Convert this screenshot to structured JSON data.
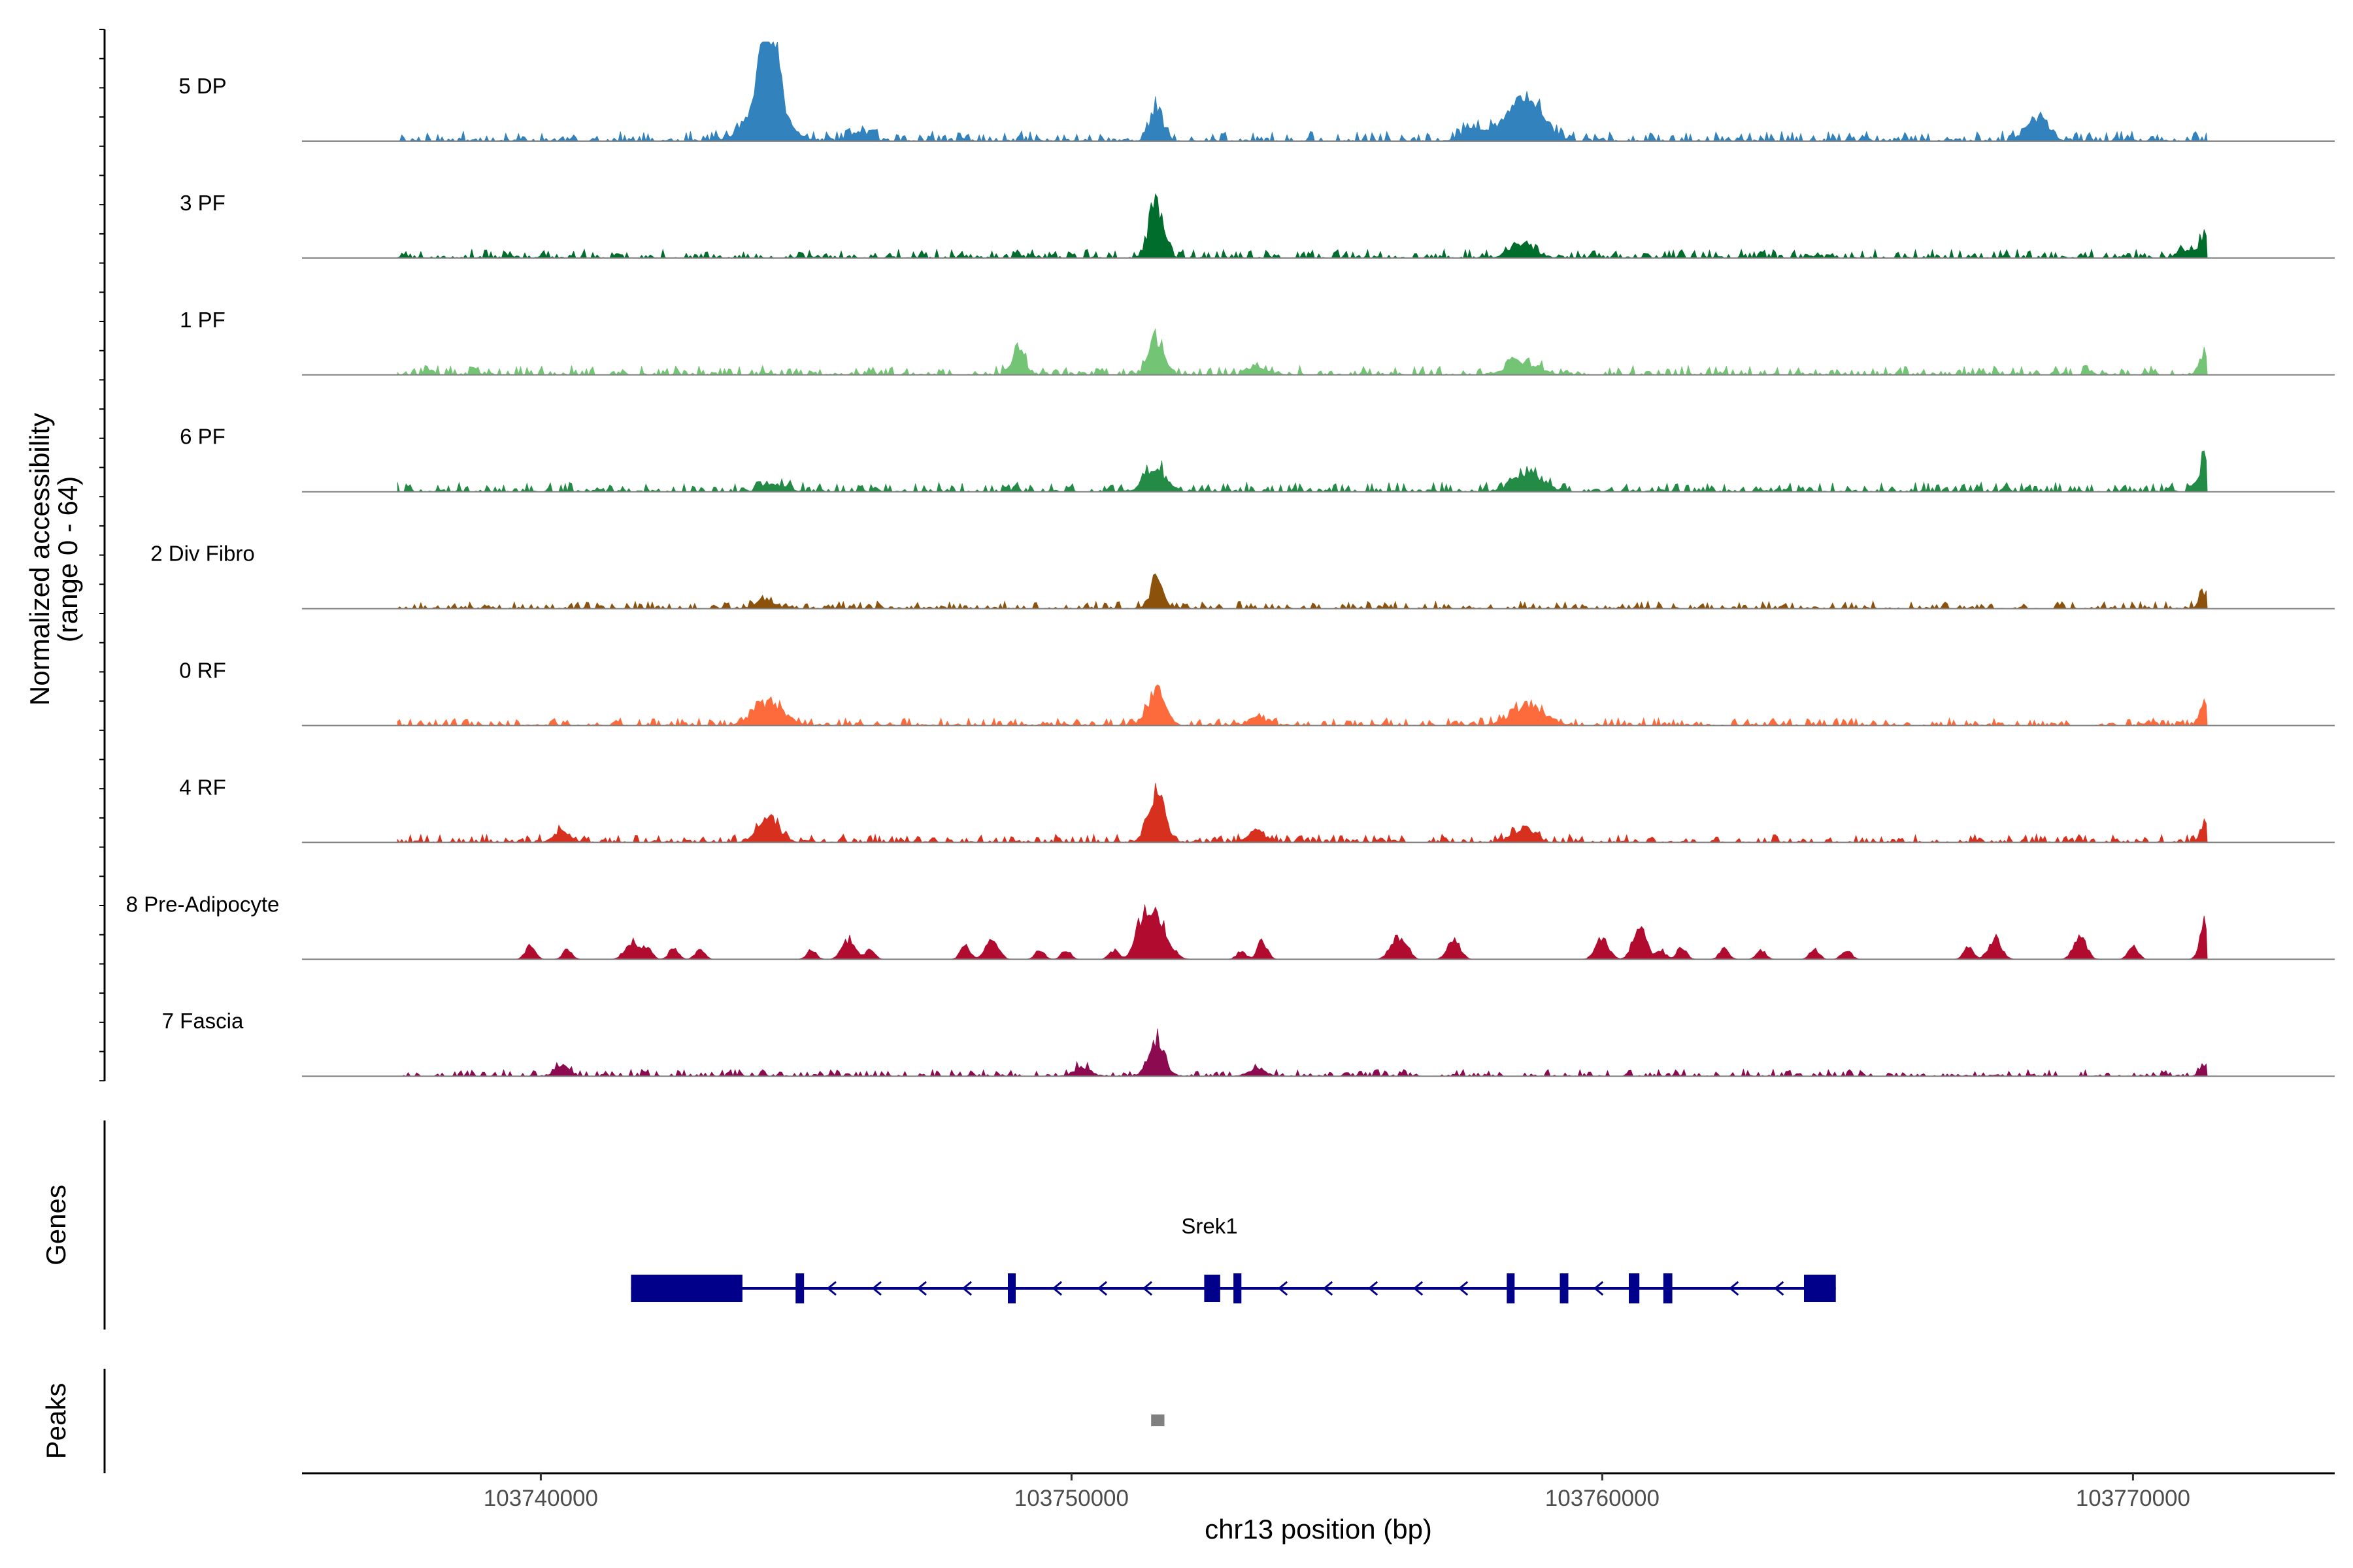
{
  "chart_data": {
    "type": "area",
    "title": "",
    "ylabel": "Normalized accessibility",
    "ylabel_range": "(range 0 - 64)",
    "xlabel": "chr13 position (bp)",
    "ylim": [
      0,
      64
    ],
    "xlim": [
      103735500,
      103773800
    ],
    "x_ticks": [
      103740000,
      103750000,
      103760000,
      103770000
    ],
    "x_tick_labels": [
      "103740000",
      "103750000",
      "103760000",
      "103770000"
    ],
    "signal_start": 103737300,
    "signal_end": 103771400,
    "tracks": [
      {
        "name": "5 DP",
        "color": "#3182bd",
        "noise": 3.0,
        "density": 0.9,
        "seed": 11,
        "peaks": [
          [
            103744300,
            60,
            160
          ],
          [
            103744250,
            22,
            350
          ],
          [
            103751600,
            20,
            120
          ],
          [
            103758600,
            20,
            260
          ],
          [
            103758300,
            10,
            450
          ],
          [
            103768200,
            14,
            200
          ],
          [
            103757500,
            6,
            150
          ],
          [
            103746000,
            5,
            200
          ]
        ]
      },
      {
        "name": "3 PF",
        "color": "#006d2c",
        "noise": 2.6,
        "density": 0.85,
        "seed": 23,
        "peaks": [
          [
            103751600,
            36,
            130
          ],
          [
            103758500,
            9,
            220
          ],
          [
            103771350,
            14,
            90
          ],
          [
            103771000,
            5,
            150
          ]
        ]
      },
      {
        "name": "1 PF",
        "color": "#74c476",
        "noise": 2.8,
        "density": 0.9,
        "seed": 37,
        "peaks": [
          [
            103749000,
            17,
            120
          ],
          [
            103751600,
            24,
            140
          ],
          [
            103758500,
            8,
            280
          ],
          [
            103753500,
            5,
            150
          ],
          [
            103771350,
            14,
            90
          ]
        ]
      },
      {
        "name": "6 PF",
        "color": "#238b45",
        "noise": 2.8,
        "density": 0.9,
        "seed": 41,
        "peaks": [
          [
            103751600,
            14,
            200
          ],
          [
            103758600,
            11,
            280
          ],
          [
            103771350,
            22,
            80
          ],
          [
            103744400,
            5,
            200
          ]
        ]
      },
      {
        "name": "2 Div Fibro",
        "color": "#8c510a",
        "noise": 2.2,
        "density": 0.8,
        "seed": 53,
        "peaks": [
          [
            103751600,
            17,
            120
          ],
          [
            103744200,
            6,
            150
          ],
          [
            103771350,
            11,
            90
          ]
        ]
      },
      {
        "name": "0 RF",
        "color": "#fd6a3b",
        "noise": 2.2,
        "density": 0.9,
        "seed": 61,
        "peaks": [
          [
            103744300,
            15,
            270
          ],
          [
            103751600,
            22,
            160
          ],
          [
            103758600,
            13,
            300
          ],
          [
            103771350,
            15,
            90
          ],
          [
            103753500,
            5,
            150
          ]
        ]
      },
      {
        "name": "4 RF",
        "color": "#d7301f",
        "noise": 2.4,
        "density": 0.9,
        "seed": 71,
        "peaks": [
          [
            103751600,
            30,
            160
          ],
          [
            103744300,
            14,
            200
          ],
          [
            103740400,
            7,
            150
          ],
          [
            103753500,
            7,
            150
          ],
          [
            103758500,
            9,
            200
          ],
          [
            103771350,
            10,
            90
          ]
        ]
      },
      {
        "name": "8 Pre-Adipocyte",
        "color": "#b10c2f",
        "noise": 0.0,
        "density": 0.0,
        "seed": 83,
        "peaks": [
          [
            103751600,
            28,
            200
          ],
          [
            103751300,
            18,
            120
          ],
          [
            103771350,
            24,
            90
          ],
          [
            103760700,
            22,
            120
          ],
          [
            103767400,
            14,
            120
          ],
          [
            103769000,
            14,
            120
          ],
          [
            103741700,
            12,
            120
          ],
          [
            103745800,
            13,
            120
          ],
          [
            103748500,
            13,
            120
          ],
          [
            103756100,
            12,
            120
          ],
          [
            103757200,
            12,
            120
          ],
          [
            103760000,
            14,
            120
          ],
          [
            103739800,
            9,
            90
          ],
          [
            103748000,
            9,
            90
          ],
          [
            103753600,
            12,
            90
          ],
          [
            103770000,
            10,
            90
          ],
          [
            103740500,
            6,
            90
          ],
          [
            103742000,
            8,
            90
          ],
          [
            103742500,
            7,
            90
          ],
          [
            103743000,
            6,
            90
          ],
          [
            103745100,
            6,
            90
          ],
          [
            103746200,
            6,
            90
          ],
          [
            103749400,
            6,
            90
          ],
          [
            103750800,
            6,
            90
          ],
          [
            103761500,
            8,
            90
          ],
          [
            103762300,
            7,
            90
          ],
          [
            103763000,
            6,
            90
          ],
          [
            103764000,
            6,
            90
          ],
          [
            103764600,
            6,
            90
          ],
          [
            103766900,
            8,
            90
          ],
          [
            103761100,
            6,
            90
          ],
          [
            103756300,
            8,
            90
          ],
          [
            103749900,
            6,
            90
          ],
          [
            103753200,
            5,
            90
          ]
        ]
      },
      {
        "name": "7 Fascia",
        "color": "#8b0a50",
        "noise": 2.0,
        "density": 0.7,
        "seed": 97,
        "peaks": [
          [
            103751600,
            23,
            150
          ],
          [
            103750200,
            6,
            150
          ],
          [
            103753500,
            5,
            150
          ],
          [
            103740400,
            7,
            120
          ],
          [
            103771350,
            6,
            90
          ]
        ]
      }
    ],
    "gene_track": {
      "title": "Genes",
      "gene": "Srek1",
      "color": "#00008b",
      "strand": "-",
      "start": 103741700,
      "end": 103764400,
      "exons": [
        [
          103741700,
          103743800
        ],
        [
          103744800,
          103744960
        ],
        [
          103748800,
          103748920
        ],
        [
          103752500,
          103752800
        ],
        [
          103753050,
          103753200
        ],
        [
          103758200,
          103758320
        ],
        [
          103759200,
          103759360
        ],
        [
          103760500,
          103760700
        ],
        [
          103761150,
          103761320
        ],
        [
          103763800,
          103764400
        ]
      ]
    },
    "peaks_track": {
      "title": "Peaks",
      "color": "#808080",
      "regions": [
        [
          103751500,
          103751750
        ]
      ]
    }
  }
}
